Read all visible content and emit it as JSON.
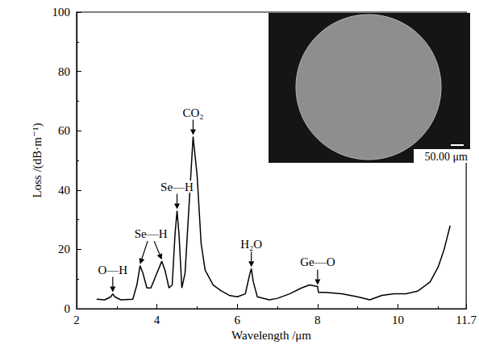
{
  "chart_data": {
    "type": "line",
    "x_label": "Wavelength /μm",
    "y_label": "Loss /(dB·m⁻¹)",
    "xlim": [
      2,
      11.7
    ],
    "xticks": [
      2,
      4,
      6,
      8,
      10
    ],
    "ylim": [
      0,
      100
    ],
    "yticks": [
      0,
      20,
      40,
      60,
      80,
      100
    ],
    "grid": false,
    "color": "#000000",
    "x": [
      2.5,
      2.7,
      2.85,
      2.9,
      2.95,
      3.1,
      3.4,
      3.5,
      3.58,
      3.65,
      3.75,
      3.85,
      4.0,
      4.12,
      4.2,
      4.3,
      4.38,
      4.45,
      4.5,
      4.55,
      4.62,
      4.7,
      4.8,
      4.9,
      5.0,
      5.1,
      5.2,
      5.4,
      5.6,
      5.8,
      6.0,
      6.2,
      6.3,
      6.35,
      6.4,
      6.5,
      6.8,
      7.0,
      7.3,
      7.6,
      7.8,
      8.0,
      8.02,
      8.2,
      8.6,
      9.0,
      9.3,
      9.6,
      9.9,
      10.2,
      10.5,
      10.8,
      11.0,
      11.15,
      11.3
    ],
    "values": [
      3.2,
      3,
      4,
      5,
      4,
      3,
      3.2,
      8,
      14.5,
      12,
      7,
      7,
      12,
      16,
      13,
      7,
      8,
      25,
      33,
      25,
      7,
      12,
      35,
      58,
      45,
      22,
      13,
      8,
      6,
      4.5,
      4,
      5,
      11,
      13.5,
      9,
      4,
      3,
      3.5,
      5,
      7,
      8,
      7.5,
      5.5,
      5.5,
      5,
      4,
      3,
      4.5,
      5,
      5,
      6,
      9,
      14,
      20,
      28
    ],
    "annotations": [
      {
        "text": "O—H",
        "points": [
          [
            2.9,
            5
          ]
        ]
      },
      {
        "text": "Se—H",
        "points": [
          [
            3.58,
            14.5
          ],
          [
            4.12,
            16
          ]
        ]
      },
      {
        "text": "Se—H",
        "points": [
          [
            4.5,
            33
          ]
        ]
      },
      {
        "text": "CO₂",
        "points": [
          [
            4.9,
            58
          ]
        ]
      },
      {
        "text": "H₂O",
        "points": [
          [
            6.35,
            13.5
          ]
        ]
      },
      {
        "text": "Ge—O",
        "points": [
          [
            8.0,
            7.5
          ]
        ]
      }
    ],
    "inset": {
      "scale_bar_label": "50.00 μm"
    }
  }
}
